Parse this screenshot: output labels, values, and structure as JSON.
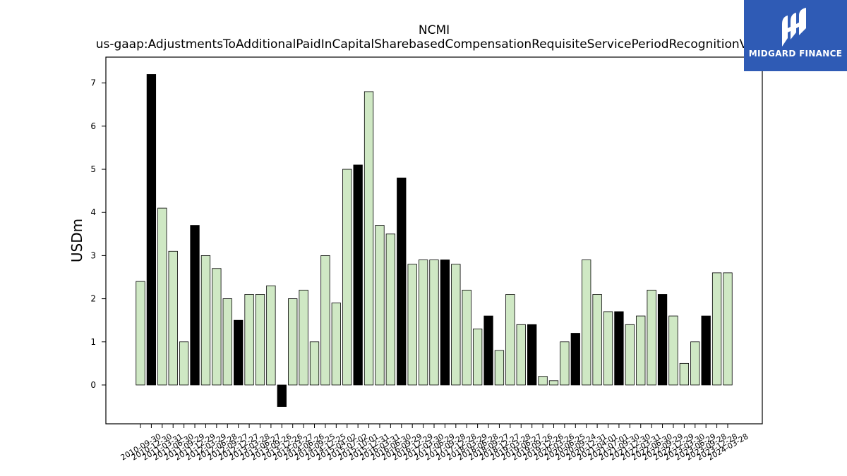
{
  "chart_data": {
    "type": "bar",
    "title": "NCMI",
    "subtitle": "us-gaap:AdjustmentsToAdditionalPaidInCapitalSharebasedCompensationRequisiteServicePeriodRecognitionValue",
    "ylabel": "USDm",
    "xlabel": "",
    "ylim": [
      -0.9,
      7.6
    ],
    "yticks": [
      0,
      1,
      2,
      3,
      4,
      5,
      6,
      7
    ],
    "grid": false,
    "colors": {
      "normal": "#cfe8c4",
      "highlight": "#000000",
      "edge": "#000000"
    },
    "categories": [
      "2010-09-30",
      "2010-12-30",
      "2011-03-31",
      "2011-06-30",
      "2011-09-29",
      "2011-12-29",
      "2012-03-29",
      "2012-06-28",
      "2012-09-27",
      "2012-12-27",
      "2013-03-28",
      "2013-06-27",
      "2013-09-26",
      "2013-12-26",
      "2014-03-27",
      "2014-06-26",
      "2014-09-25",
      "2014-12-25",
      "2015-04-02",
      "2015-07-02",
      "2015-10-01",
      "2015-12-31",
      "2016-03-31",
      "2016-06-30",
      "2016-09-29",
      "2016-12-29",
      "2017-03-30",
      "2017-06-29",
      "2017-09-28",
      "2017-12-28",
      "2018-03-29",
      "2018-06-28",
      "2018-09-27",
      "2018-12-27",
      "2019-03-28",
      "2019-06-27",
      "2019-09-26",
      "2019-12-26",
      "2020-03-26",
      "2020-06-25",
      "2020-09-24",
      "2020-12-31",
      "2021-04-01",
      "2021-07-01",
      "2021-09-30",
      "2021-12-30",
      "2022-03-31",
      "2022-06-30",
      "2022-09-29",
      "2022-12-29",
      "2023-03-30",
      "2023-06-29",
      "2023-09-28",
      "2023-12-28",
      "2024-03-28"
    ],
    "values": [
      2.4,
      7.2,
      4.1,
      3.1,
      1.0,
      3.7,
      3.0,
      2.7,
      2.0,
      1.5,
      2.1,
      2.1,
      2.3,
      -0.5,
      2.0,
      2.2,
      1.0,
      3.0,
      1.9,
      5.0,
      5.1,
      6.8,
      3.7,
      3.5,
      4.8,
      2.8,
      2.9,
      2.9,
      2.9,
      2.8,
      2.2,
      1.3,
      1.6,
      0.8,
      2.1,
      1.4,
      1.4,
      0.2,
      0.1,
      1.0,
      1.2,
      2.9,
      2.1,
      1.7,
      1.7,
      1.4,
      1.6,
      2.2,
      2.1,
      1.6,
      0.5,
      1.0,
      1.6,
      2.6,
      2.6
    ],
    "highlighted": [
      false,
      true,
      false,
      false,
      false,
      true,
      false,
      false,
      false,
      true,
      false,
      false,
      false,
      true,
      false,
      false,
      false,
      false,
      false,
      false,
      true,
      false,
      false,
      false,
      true,
      false,
      false,
      false,
      true,
      false,
      false,
      false,
      true,
      false,
      false,
      false,
      true,
      false,
      false,
      false,
      true,
      false,
      false,
      false,
      true,
      false,
      false,
      false,
      true,
      false,
      false,
      false,
      true,
      false,
      false
    ]
  },
  "logo": {
    "text": "MIDGARD FINANCE",
    "background": "#2f5bb5"
  }
}
